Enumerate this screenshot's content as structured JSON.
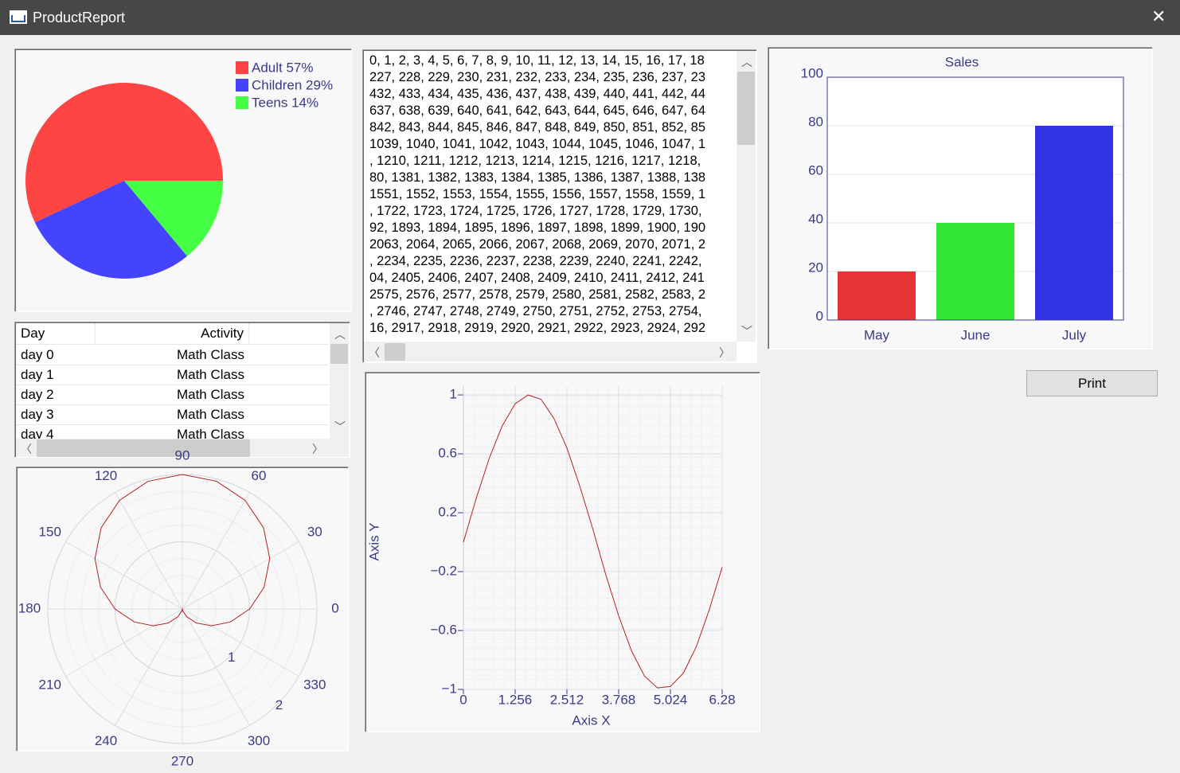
{
  "window": {
    "title": "ProductReport"
  },
  "pie_chart": {
    "type": "pie",
    "labels": [
      "Adult 57%",
      "Children 29%",
      "Teens 14%"
    ],
    "values": [
      57,
      29,
      14
    ],
    "colors": [
      "#ff4444",
      "#4444ff",
      "#44ff44"
    ]
  },
  "table": {
    "columns": [
      "Day",
      "Activity"
    ],
    "rows": [
      [
        "day 0",
        "Math Class"
      ],
      [
        "day 1",
        "Math Class"
      ],
      [
        "day 2",
        "Math Class"
      ],
      [
        "day 3",
        "Math Class"
      ],
      [
        "day 4",
        "Math Class"
      ]
    ]
  },
  "text_box": {
    "lines": [
      "0, 1, 2, 3, 4, 5, 6, 7, 8, 9, 10, 11, 12, 13, 14, 15, 16, 17, 18",
      "227, 228, 229, 230, 231, 232, 233, 234, 235, 236, 237, 23",
      "432, 433, 434, 435, 436, 437, 438, 439, 440, 441, 442, 44",
      "637, 638, 639, 640, 641, 642, 643, 644, 645, 646, 647, 64",
      "842, 843, 844, 845, 846, 847, 848, 849, 850, 851, 852, 85",
      "1039, 1040, 1041, 1042, 1043, 1044, 1045, 1046, 1047, 1",
      ", 1210, 1211, 1212, 1213, 1214, 1215, 1216, 1217, 1218,",
      "80, 1381, 1382, 1383, 1384, 1385, 1386, 1387, 1388, 138",
      "1551, 1552, 1553, 1554, 1555, 1556, 1557, 1558, 1559, 1",
      ", 1722, 1723, 1724, 1725, 1726, 1727, 1728, 1729, 1730,",
      "92, 1893, 1894, 1895, 1896, 1897, 1898, 1899, 1900, 190",
      "2063, 2064, 2065, 2066, 2067, 2068, 2069, 2070, 2071, 2",
      ", 2234, 2235, 2236, 2237, 2238, 2239, 2240, 2241, 2242,",
      "04, 2405, 2406, 2407, 2408, 2409, 2410, 2411, 2412, 241",
      "2575, 2576, 2577, 2578, 2579, 2580, 2581, 2582, 2583, 2",
      ", 2746, 2747, 2748, 2749, 2750, 2751, 2752, 2753, 2754,",
      "16, 2917, 2918, 2919, 2920, 2921, 2922, 2923, 2924, 292"
    ]
  },
  "polar_chart": {
    "type": "polar",
    "theta": [
      0,
      15,
      30,
      45,
      60,
      75,
      90,
      105,
      120,
      135,
      150,
      165,
      180,
      195,
      210,
      225,
      240,
      255,
      270,
      285,
      300,
      315,
      330,
      345,
      360
    ],
    "r": [
      1,
      1.259,
      1.5,
      1.707,
      1.866,
      1.966,
      2,
      1.966,
      1.866,
      1.707,
      1.5,
      1.259,
      1,
      0.741,
      0.5,
      0.293,
      0.134,
      0.034,
      0,
      0.034,
      0.134,
      0.293,
      0.5,
      0.741,
      1
    ],
    "color": "#b22222",
    "rlim": [
      0,
      2
    ],
    "rticks": [
      1,
      2
    ],
    "theta_ticks": [
      0,
      30,
      60,
      90,
      120,
      150,
      180,
      210,
      240,
      270,
      300,
      330
    ]
  },
  "line_chart": {
    "type": "line",
    "x_label": "Axis X",
    "y_label": "Axis Y",
    "x": [
      0,
      0.314,
      0.628,
      0.942,
      1.256,
      1.57,
      1.884,
      2.198,
      2.512,
      2.826,
      3.14,
      3.454,
      3.768,
      4.082,
      4.396,
      4.71,
      5.024,
      5.338,
      5.652,
      5.966,
      6.28
    ],
    "values": [
      0,
      0.3,
      0.57,
      0.79,
      0.94,
      1,
      0.97,
      0.84,
      0.64,
      0.38,
      0.09,
      -0.22,
      -0.5,
      -0.74,
      -0.91,
      -0.99,
      -0.98,
      -0.89,
      -0.71,
      -0.46,
      -0.17
    ],
    "color": "#b22222",
    "xlim": [
      0,
      6.28
    ],
    "ylim": [
      -1,
      1.06
    ],
    "xticks": [
      0,
      1.256,
      2.512,
      3.768,
      5.024,
      6.28
    ],
    "yticks": [
      {
        "value": -1,
        "label": "−1"
      },
      {
        "value": -0.6,
        "label": "−0.6"
      },
      {
        "value": -0.2,
        "label": "−0.2"
      },
      0.2,
      0.6,
      1
    ],
    "grid": true
  },
  "bar_chart": {
    "type": "bar",
    "title": "Sales",
    "categories": [
      "May",
      "June",
      "July"
    ],
    "values": [
      20,
      40,
      80
    ],
    "colors": [
      "#e63333",
      "#33e633",
      "#3333e6"
    ],
    "ylim": [
      0,
      100
    ],
    "yticks": [
      0,
      20,
      40,
      60,
      80,
      100
    ],
    "grid": true
  },
  "button": {
    "label": "Print"
  }
}
